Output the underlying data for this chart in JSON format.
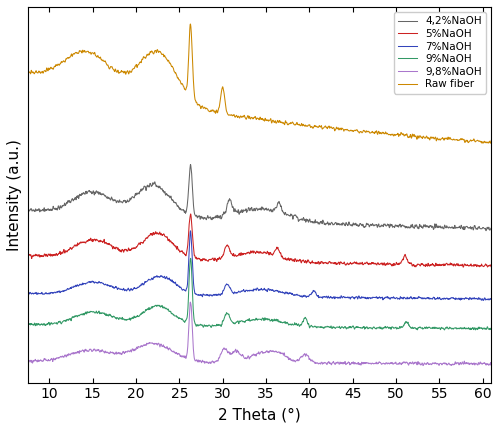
{
  "xlabel": "2 Theta (°)",
  "ylabel": "Intensity (a.u.)",
  "xlim": [
    7.5,
    61
  ],
  "x_ticks": [
    10,
    15,
    20,
    25,
    30,
    35,
    40,
    45,
    50,
    55,
    60
  ],
  "legend_labels": [
    "4,2%NaOH",
    "5%NaOH",
    "7%NaOH",
    "9%NaOH",
    "9,8%NaOH",
    "Raw fiber"
  ],
  "line_colors": [
    "#666666",
    "#cc2222",
    "#3344bb",
    "#339966",
    "#aa77cc",
    "#cc8800"
  ],
  "legend_colors": [
    "#888888",
    "#dd4444",
    "#6677cc",
    "#55aacc",
    "#aa88cc",
    "#ddaa33"
  ],
  "seed": 42
}
